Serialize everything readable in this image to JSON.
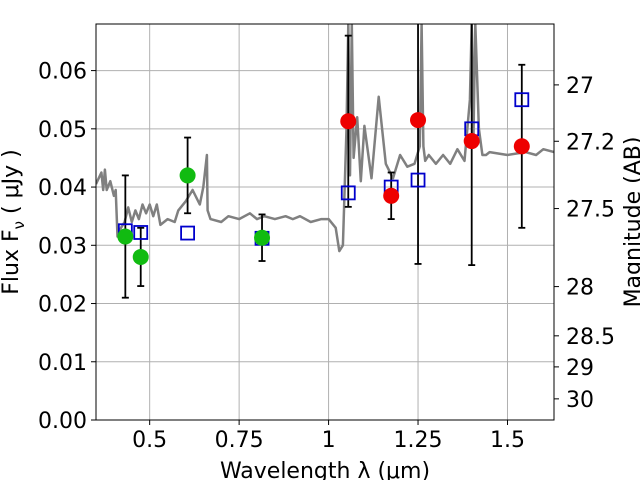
{
  "chart_data": {
    "type": "scatter",
    "xlabel": "Wavelength  λ (μm)",
    "ylabel": "Flux  F",
    "ylabel_sub": "ν",
    "ylabel_unit": "  ( μJy )",
    "y2label": "Magnitude (AB)",
    "xlim": [
      0.35,
      1.63
    ],
    "ylim": [
      0.0,
      0.068
    ],
    "grid": true,
    "x_ticks": [
      0.5,
      0.75,
      1.0,
      1.25,
      1.5
    ],
    "x_tick_labels": [
      "0.5",
      "0.75",
      "1",
      "1.25",
      "1.5"
    ],
    "y_ticks": [
      0.0,
      0.01,
      0.02,
      0.03,
      0.04,
      0.05,
      0.06
    ],
    "y_tick_labels": [
      "0.00",
      "0.01",
      "0.02",
      "0.03",
      "0.04",
      "0.05",
      "0.06"
    ],
    "y2_ticks": [
      27,
      27.2,
      27.5,
      28,
      28.5,
      29,
      30
    ],
    "y2_tick_labels": [
      "27",
      "27.2",
      "27.5",
      "28",
      "28.5",
      "29",
      "30"
    ],
    "colors": {
      "model": "#808080",
      "optical_obs": "#11bb11",
      "nir_obs": "#ee0000",
      "model_phot": "#0000cc",
      "errorbar": "#000000",
      "grid": "#b0b0b0"
    },
    "model_spectrum": {
      "x": [
        0.35,
        0.365,
        0.37,
        0.375,
        0.38,
        0.39,
        0.4,
        0.405,
        0.41,
        0.42,
        0.43,
        0.44,
        0.45,
        0.46,
        0.47,
        0.48,
        0.49,
        0.5,
        0.51,
        0.52,
        0.53,
        0.55,
        0.57,
        0.58,
        0.6,
        0.62,
        0.64,
        0.65,
        0.66,
        0.662,
        0.67,
        0.7,
        0.72,
        0.75,
        0.78,
        0.8,
        0.82,
        0.85,
        0.88,
        0.9,
        0.92,
        0.95,
        0.98,
        1.0,
        1.02,
        1.03,
        1.04,
        1.05,
        1.055,
        1.06,
        1.065,
        1.07,
        1.08,
        1.09,
        1.1,
        1.12,
        1.14,
        1.16,
        1.18,
        1.2,
        1.22,
        1.24,
        1.255,
        1.26,
        1.265,
        1.27,
        1.28,
        1.3,
        1.32,
        1.34,
        1.36,
        1.38,
        1.395,
        1.4,
        1.405,
        1.41,
        1.42,
        1.43,
        1.44,
        1.45,
        1.5,
        1.55,
        1.58,
        1.6,
        1.63
      ],
      "y": [
        0.0405,
        0.0425,
        0.0395,
        0.043,
        0.0395,
        0.041,
        0.0385,
        0.0395,
        0.0315,
        0.033,
        0.034,
        0.0365,
        0.034,
        0.036,
        0.0345,
        0.037,
        0.0355,
        0.037,
        0.035,
        0.037,
        0.0335,
        0.0345,
        0.034,
        0.036,
        0.0375,
        0.0395,
        0.037,
        0.04,
        0.0455,
        0.036,
        0.0345,
        0.034,
        0.035,
        0.0345,
        0.0355,
        0.0345,
        0.035,
        0.0345,
        0.035,
        0.0345,
        0.035,
        0.034,
        0.0345,
        0.0345,
        0.033,
        0.029,
        0.03,
        0.05,
        0.068,
        0.042,
        0.068,
        0.045,
        0.052,
        0.041,
        0.0505,
        0.0415,
        0.0555,
        0.044,
        0.0415,
        0.0455,
        0.0435,
        0.044,
        0.047,
        0.068,
        0.047,
        0.0445,
        0.0455,
        0.044,
        0.0455,
        0.044,
        0.0465,
        0.0445,
        0.055,
        0.068,
        0.049,
        0.068,
        0.05,
        0.0455,
        0.0455,
        0.046,
        0.0455,
        0.046,
        0.0455,
        0.0465,
        0.046
      ]
    },
    "optical_observations": [
      {
        "x": 0.432,
        "y": 0.0315,
        "err": 0.0105
      },
      {
        "x": 0.475,
        "y": 0.028,
        "err": 0.005
      },
      {
        "x": 0.606,
        "y": 0.042,
        "err": 0.0065
      },
      {
        "x": 0.814,
        "y": 0.0313,
        "err": 0.004
      }
    ],
    "nir_observations": [
      {
        "x": 1.055,
        "y": 0.0513,
        "err": 0.0147
      },
      {
        "x": 1.175,
        "y": 0.0385,
        "err": 0.004
      },
      {
        "x": 1.25,
        "y": 0.0515,
        "err": 0.0247
      },
      {
        "x": 1.4,
        "y": 0.0479,
        "err": 0.0213
      },
      {
        "x": 1.54,
        "y": 0.047,
        "err": 0.014
      }
    ],
    "model_photometry": [
      {
        "x": 0.432,
        "y": 0.0325
      },
      {
        "x": 0.475,
        "y": 0.0322
      },
      {
        "x": 0.606,
        "y": 0.0321
      },
      {
        "x": 0.814,
        "y": 0.0312
      },
      {
        "x": 1.055,
        "y": 0.039
      },
      {
        "x": 1.175,
        "y": 0.04
      },
      {
        "x": 1.25,
        "y": 0.0412
      },
      {
        "x": 1.4,
        "y": 0.05
      },
      {
        "x": 1.54,
        "y": 0.055
      }
    ]
  }
}
